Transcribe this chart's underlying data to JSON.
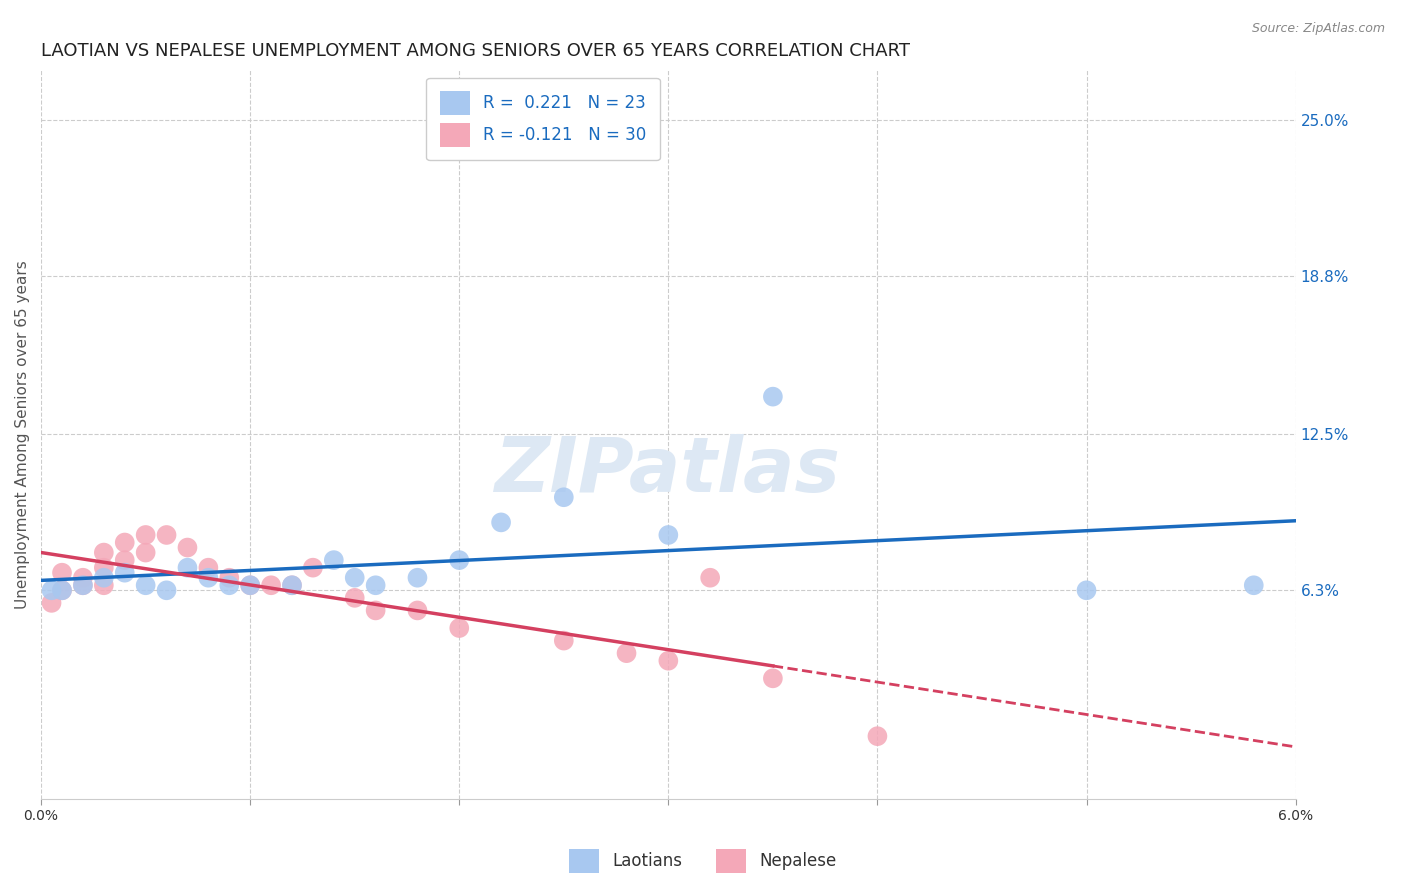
{
  "title": "LAOTIAN VS NEPALESE UNEMPLOYMENT AMONG SENIORS OVER 65 YEARS CORRELATION CHART",
  "source": "Source: ZipAtlas.com",
  "ylabel": "Unemployment Among Seniors over 65 years",
  "xlim": [
    0.0,
    0.06
  ],
  "ylim": [
    -0.02,
    0.27
  ],
  "xticks": [
    0.0,
    0.01,
    0.02,
    0.03,
    0.04,
    0.05,
    0.06
  ],
  "xticklabels": [
    "0.0%",
    "",
    "",
    "",
    "",
    "",
    "6.0%"
  ],
  "ytick_right_labels": [
    "6.3%",
    "12.5%",
    "18.8%",
    "25.0%"
  ],
  "ytick_right_values": [
    0.063,
    0.125,
    0.188,
    0.25
  ],
  "laotian_R": 0.221,
  "laotian_N": 23,
  "nepalese_R": -0.121,
  "nepalese_N": 30,
  "laotian_color": "#a8c8f0",
  "laotian_line_color": "#1a6bbf",
  "nepalese_color": "#f4a8b8",
  "nepalese_line_color": "#d44060",
  "watermark": "ZIPatlas",
  "laotian_x": [
    0.0005,
    0.001,
    0.002,
    0.003,
    0.004,
    0.005,
    0.006,
    0.007,
    0.008,
    0.009,
    0.01,
    0.012,
    0.014,
    0.015,
    0.016,
    0.018,
    0.02,
    0.022,
    0.025,
    0.03,
    0.035,
    0.05,
    0.058
  ],
  "laotian_y": [
    0.063,
    0.063,
    0.065,
    0.068,
    0.07,
    0.065,
    0.063,
    0.072,
    0.068,
    0.065,
    0.065,
    0.065,
    0.075,
    0.068,
    0.065,
    0.068,
    0.075,
    0.09,
    0.1,
    0.085,
    0.14,
    0.063,
    0.065
  ],
  "nepalese_x": [
    0.0005,
    0.001,
    0.001,
    0.002,
    0.002,
    0.003,
    0.003,
    0.003,
    0.004,
    0.004,
    0.005,
    0.005,
    0.006,
    0.007,
    0.008,
    0.009,
    0.01,
    0.011,
    0.012,
    0.013,
    0.015,
    0.016,
    0.018,
    0.02,
    0.025,
    0.028,
    0.03,
    0.032,
    0.035,
    0.04
  ],
  "nepalese_y": [
    0.058,
    0.063,
    0.07,
    0.065,
    0.068,
    0.065,
    0.072,
    0.078,
    0.075,
    0.082,
    0.078,
    0.085,
    0.085,
    0.08,
    0.072,
    0.068,
    0.065,
    0.065,
    0.065,
    0.072,
    0.06,
    0.055,
    0.055,
    0.048,
    0.043,
    0.038,
    0.035,
    0.068,
    0.028,
    0.005
  ],
  "scatter_size": 200,
  "background_color": "#ffffff",
  "grid_color": "#cccccc",
  "title_fontsize": 13,
  "axis_label_fontsize": 11,
  "tick_fontsize": 10,
  "legend_fontsize": 12
}
